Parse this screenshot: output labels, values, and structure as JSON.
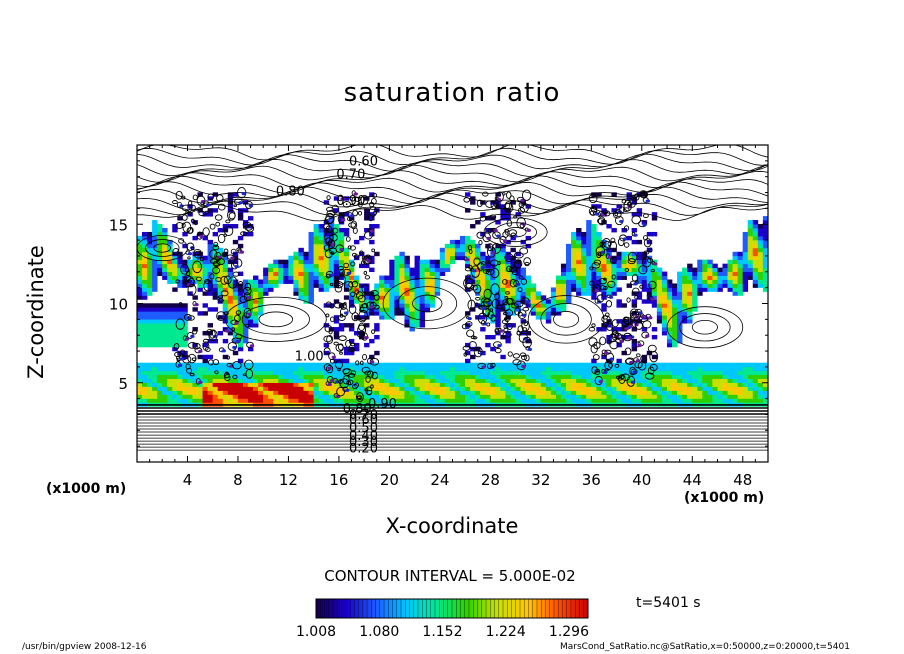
{
  "chart_data": {
    "type": "heatmap",
    "title": "saturation ratio",
    "xlabel": "X-coordinate",
    "ylabel": "Z-coordinate",
    "x_unit": "(x1000 m)",
    "z_unit": "(x1000 m)",
    "xlim": [
      0,
      50
    ],
    "ylim": [
      0,
      20
    ],
    "x_ticks": [
      "4",
      "8",
      "12",
      "16",
      "20",
      "24",
      "28",
      "32",
      "36",
      "40",
      "44",
      "48"
    ],
    "y_ticks": [
      "5",
      "10",
      "15"
    ],
    "contour_labels": [
      "0.60",
      "0.70",
      "0.80",
      "0.90",
      "1.00",
      "0.90",
      "0.80",
      "0.70",
      "0.60",
      "0.50",
      "0.40",
      "0.30",
      "0.20"
    ],
    "contour_interval": "CONTOUR INTERVAL = 5.000E-02",
    "colorbar": {
      "ticks": [
        "1.008",
        "1.080",
        "1.152",
        "1.224",
        "1.296"
      ],
      "range": [
        1.008,
        1.296
      ],
      "colors": [
        "#14004a",
        "#1a00c8",
        "#1e5cff",
        "#00c8ff",
        "#00e890",
        "#30d000",
        "#c8e000",
        "#ffc800",
        "#ff5000",
        "#c80000"
      ]
    },
    "time_label": "t=5401 s",
    "clouds": [
      {
        "x_range": [
          3,
          9
        ],
        "z_range": [
          5,
          17
        ]
      },
      {
        "x_range": [
          15,
          19
        ],
        "z_range": [
          4,
          17
        ]
      },
      {
        "x_range": [
          26,
          31
        ],
        "z_range": [
          6,
          17
        ]
      },
      {
        "x_range": [
          36,
          41
        ],
        "z_range": [
          5,
          17
        ]
      }
    ]
  },
  "footer": {
    "left": "/usr/bin/gpview   2008-12-16",
    "right": "MarsCond_SatRatio.nc@SatRatio,x=0:50000,z=0:20000,t=5401"
  }
}
